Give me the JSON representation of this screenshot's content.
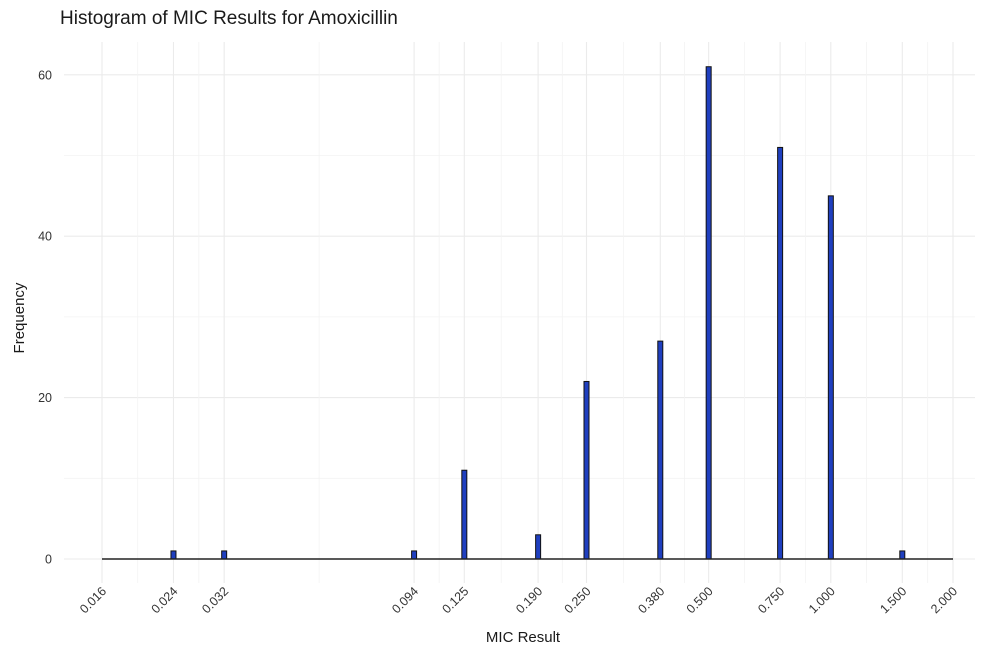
{
  "chart_data": {
    "type": "bar",
    "title": "Histogram of MIC Results for Amoxicillin",
    "xlabel": "MIC Result",
    "ylabel": "Frequency",
    "x_scale": "log2",
    "xlim": [
      0.016,
      2.0
    ],
    "ylim": [
      0,
      64
    ],
    "y_ticks": [
      0,
      20,
      40,
      60
    ],
    "x_ticks": [
      0.016,
      0.024,
      0.032,
      0.094,
      0.125,
      0.19,
      0.25,
      0.38,
      0.5,
      0.75,
      1.0,
      1.5,
      2.0
    ],
    "x_tick_labels": [
      "0.016",
      "0.024",
      "0.032",
      "0.094",
      "0.125",
      "0.190",
      "0.250",
      "0.380",
      "0.500",
      "0.750",
      "1.000",
      "1.500",
      "2.000"
    ],
    "categories": [
      0.016,
      0.024,
      0.032,
      0.094,
      0.125,
      0.19,
      0.25,
      0.38,
      0.5,
      0.75,
      1.0,
      1.5,
      2.0
    ],
    "values": [
      0,
      1,
      1,
      1,
      11,
      3,
      22,
      27,
      61,
      51,
      45,
      1,
      0
    ],
    "bar_color": "#1f3fbf",
    "bar_edge_color": "#111111",
    "grid": true,
    "legend": false
  }
}
